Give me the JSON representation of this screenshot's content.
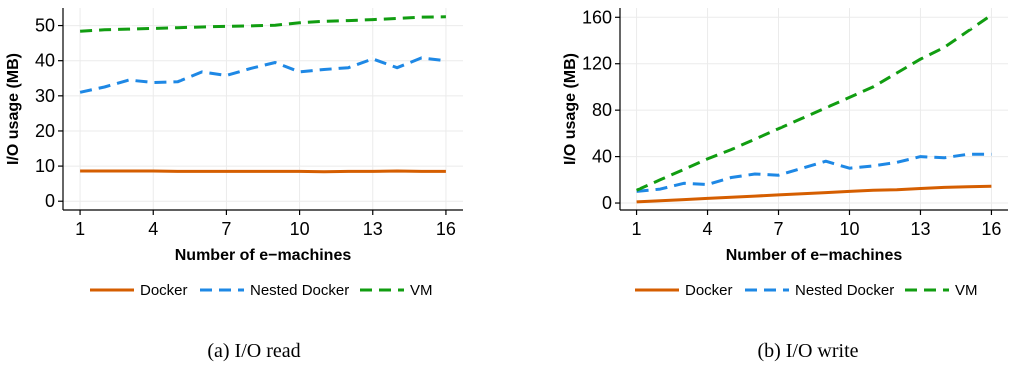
{
  "figure": {
    "panels": [
      {
        "caption": "(a) I/O read"
      },
      {
        "caption": "(b) I/O write"
      }
    ]
  },
  "colors": {
    "Docker": "#d55e00",
    "Nested Docker": "#1e88e5",
    "VM": "#119d11",
    "grid": "#ebebeb",
    "axis": "#000000"
  },
  "chart_data": [
    {
      "type": "line",
      "caption": "(a) I/O read",
      "xlabel": "Number of e−machines",
      "ylabel": "I/O usage (MB)",
      "x": [
        1,
        2,
        3,
        4,
        5,
        6,
        7,
        8,
        9,
        10,
        11,
        12,
        13,
        14,
        15,
        16
      ],
      "xticks": [
        1,
        4,
        7,
        10,
        13,
        16
      ],
      "yticks": [
        0,
        10,
        20,
        30,
        40,
        50
      ],
      "xlim": [
        0.3,
        16.7
      ],
      "ylim": [
        -2.5,
        55
      ],
      "grid": true,
      "legend_position": "bottom",
      "series": [
        {
          "name": "Docker",
          "dash": "solid",
          "values": [
            8.6,
            8.6,
            8.6,
            8.6,
            8.5,
            8.5,
            8.5,
            8.5,
            8.5,
            8.5,
            8.4,
            8.5,
            8.5,
            8.6,
            8.5,
            8.5
          ]
        },
        {
          "name": "Nested Docker",
          "dash": "dashed",
          "values": [
            31.0,
            32.5,
            34.5,
            33.8,
            34.0,
            36.8,
            35.8,
            37.8,
            39.5,
            36.8,
            37.5,
            38.0,
            40.5,
            38.0,
            40.8,
            40.0
          ]
        },
        {
          "name": "VM",
          "dash": "dashed",
          "values": [
            48.4,
            48.8,
            49.0,
            49.2,
            49.4,
            49.6,
            49.8,
            49.9,
            50.1,
            50.8,
            51.2,
            51.4,
            51.7,
            52.0,
            52.4,
            52.5
          ]
        }
      ]
    },
    {
      "type": "line",
      "caption": "(b) I/O write",
      "xlabel": "Number of e−machines",
      "ylabel": "I/O usage (MB)",
      "x": [
        1,
        2,
        3,
        4,
        5,
        6,
        7,
        8,
        9,
        10,
        11,
        12,
        13,
        14,
        15,
        16
      ],
      "xticks": [
        1,
        4,
        7,
        10,
        13,
        16
      ],
      "yticks": [
        0,
        40,
        80,
        120,
        160
      ],
      "xlim": [
        0.3,
        16.7
      ],
      "ylim": [
        -6,
        168
      ],
      "grid": true,
      "legend_position": "bottom",
      "series": [
        {
          "name": "Docker",
          "dash": "solid",
          "values": [
            1.0,
            2.0,
            3.0,
            4.0,
            5.0,
            6.0,
            7.0,
            8.0,
            9.0,
            10.0,
            11.0,
            11.5,
            12.5,
            13.5,
            14.0,
            14.5
          ]
        },
        {
          "name": "Nested Docker",
          "dash": "dashed",
          "values": [
            10.0,
            12.0,
            17.0,
            16.0,
            22.0,
            25.0,
            24.0,
            30.0,
            36.0,
            30.0,
            32.0,
            35.0,
            40.0,
            39.0,
            42.0,
            42.0
          ]
        },
        {
          "name": "VM",
          "dash": "dashed",
          "values": [
            11.0,
            20.0,
            29.0,
            38.0,
            46.0,
            55.0,
            64.0,
            73.0,
            82.0,
            91.0,
            100.0,
            112.0,
            124.0,
            134.0,
            148.0,
            162.0
          ]
        }
      ]
    }
  ]
}
